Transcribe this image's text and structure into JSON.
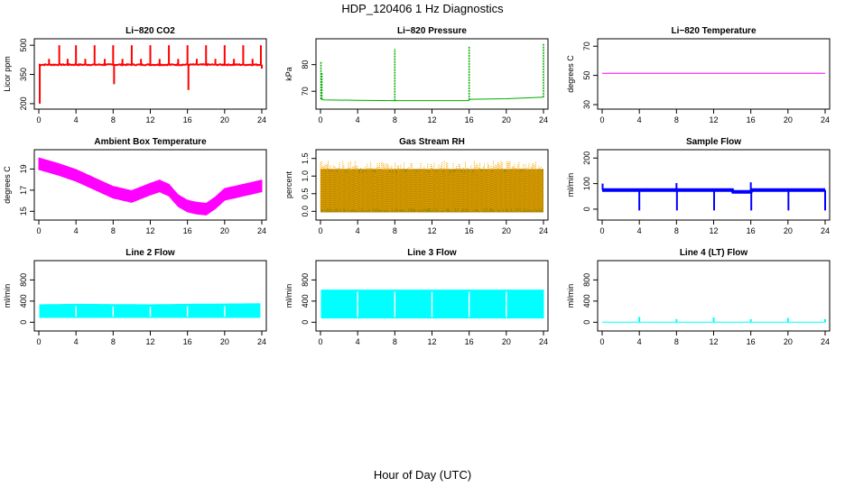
{
  "title": "HDP_120406  1 Hz Diagnostics",
  "xlabel": "Hour of Day (UTC)",
  "chart_data": [
    {
      "type": "line",
      "title": "Li−820 CO2",
      "xlabel": "",
      "ylabel": "Licor ppm",
      "color": "#ff0000",
      "xlim": [
        0,
        24
      ],
      "ylim": [
        195,
        510
      ],
      "xticks": [
        0,
        4,
        8,
        12,
        16,
        20,
        24
      ],
      "yticks": [
        200,
        350,
        500
      ],
      "baseline": 400,
      "noise": 6,
      "spikes": [
        [
          0.1,
          200
        ],
        [
          1.1,
          430
        ],
        [
          2.2,
          500
        ],
        [
          3.1,
          430
        ],
        [
          4.0,
          500
        ],
        [
          5.0,
          430
        ],
        [
          6.0,
          500
        ],
        [
          7.1,
          430
        ],
        [
          8.0,
          500
        ],
        [
          8.1,
          300
        ],
        [
          9.0,
          430
        ],
        [
          10.0,
          500
        ],
        [
          11.0,
          430
        ],
        [
          12.0,
          500
        ],
        [
          13.0,
          430
        ],
        [
          14.0,
          500
        ],
        [
          15.0,
          430
        ],
        [
          16.0,
          500
        ],
        [
          16.1,
          270
        ],
        [
          17.0,
          430
        ],
        [
          18.0,
          500
        ],
        [
          19.0,
          430
        ],
        [
          20.0,
          500
        ],
        [
          21.0,
          430
        ],
        [
          22.0,
          500
        ],
        [
          23.0,
          430
        ],
        [
          23.9,
          500
        ],
        [
          24.0,
          380
        ]
      ]
    },
    {
      "type": "line",
      "title": "Li−820 Pressure",
      "xlabel": "",
      "ylabel": "kPa",
      "color": "#00aa00",
      "xlim": [
        0,
        24
      ],
      "ylim": [
        65,
        88
      ],
      "xticks": [
        0,
        4,
        8,
        12,
        16,
        20,
        24
      ],
      "yticks": [
        70,
        80
      ],
      "x": [
        0,
        0.3,
        4,
        8,
        12,
        15.9,
        16.1,
        20,
        24
      ],
      "y": [
        67.2,
        66.8,
        66.6,
        66.5,
        66.5,
        66.5,
        67.0,
        67.2,
        67.8
      ],
      "spikes": [
        [
          0.05,
          81
        ],
        [
          0.15,
          77
        ],
        [
          8.0,
          86
        ],
        [
          16.0,
          87
        ],
        [
          24.0,
          88
        ]
      ]
    },
    {
      "type": "line",
      "title": "Li−820 Temperature",
      "xlabel": "",
      "ylabel": "degrees C",
      "color": "#ff00ff",
      "xlim": [
        0,
        24
      ],
      "ylim": [
        30,
        72
      ],
      "xticks": [
        0,
        4,
        8,
        12,
        16,
        20,
        24
      ],
      "yticks": [
        30,
        50,
        70
      ],
      "x": [
        0,
        24
      ],
      "y": [
        51.5,
        51.5
      ]
    },
    {
      "type": "line",
      "title": "Ambient Box Temperature",
      "xlabel": "",
      "ylabel": "degrees C",
      "color": "#ff00ff",
      "xlim": [
        0,
        24
      ],
      "ylim": [
        14.6,
        20.4
      ],
      "xticks": [
        0,
        4,
        8,
        12,
        16,
        20,
        24
      ],
      "yticks": [
        15,
        17,
        19
      ],
      "band": 0.55,
      "x": [
        0,
        2,
        4,
        6,
        8,
        10,
        12,
        13,
        14,
        15,
        16,
        17,
        18,
        19,
        20,
        22,
        24
      ],
      "y": [
        19.5,
        19.0,
        18.4,
        17.6,
        16.8,
        16.4,
        17.1,
        17.4,
        17.0,
        16.0,
        15.5,
        15.3,
        15.2,
        15.8,
        16.6,
        17.0,
        17.4
      ]
    },
    {
      "type": "scatter",
      "title": "Gas Stream RH",
      "xlabel": "",
      "ylabel": "percent",
      "color": "#ffa500",
      "color2": "#aa8800",
      "xlim": [
        0,
        24
      ],
      "ylim": [
        -0.12,
        1.62
      ],
      "xticks": [
        0,
        4,
        8,
        12,
        16,
        20,
        24
      ],
      "yticks": [
        0.0,
        0.5,
        1.0,
        1.5
      ],
      "ytick_labels": [
        "0.0",
        "0.5",
        "1.0",
        "1.5"
      ],
      "low": -0.03,
      "high": 1.2,
      "peak": 1.48
    },
    {
      "type": "line",
      "title": "Sample Flow",
      "xlabel": "",
      "ylabel": "ml/min",
      "color": "#0000ff",
      "xlim": [
        0,
        24
      ],
      "ylim": [
        -25,
        215
      ],
      "xticks": [
        0,
        4,
        8,
        12,
        16,
        20,
        24
      ],
      "yticks": [
        0,
        100,
        200
      ],
      "x": [
        0,
        14,
        14.1,
        16,
        16.1,
        24
      ],
      "y": [
        75,
        75,
        68,
        68,
        75,
        75
      ],
      "spikes": [
        [
          0.05,
          100
        ],
        [
          4.0,
          -5
        ],
        [
          8.0,
          102
        ],
        [
          8.05,
          -5
        ],
        [
          12.0,
          80
        ],
        [
          12.05,
          -5
        ],
        [
          16.0,
          105
        ],
        [
          16.05,
          -5
        ],
        [
          20.0,
          80
        ],
        [
          20.05,
          -5
        ],
        [
          24.0,
          -5
        ]
      ]
    },
    {
      "type": "area",
      "title": "Line 2 Flow",
      "xlabel": "",
      "ylabel": "ml/min",
      "color": "#00ffff",
      "xlim": [
        0,
        24
      ],
      "ylim": [
        -80,
        1080
      ],
      "xticks": [
        0,
        4,
        8,
        12,
        16,
        20,
        24
      ],
      "yticks": [
        0,
        400,
        800
      ],
      "x": [
        0.1,
        4,
        8,
        12,
        16,
        20,
        24
      ],
      "low": [
        90,
        90,
        90,
        90,
        90,
        90,
        90
      ],
      "high": [
        330,
        340,
        335,
        330,
        340,
        345,
        350
      ],
      "gaps": [
        4,
        8,
        12,
        16,
        20
      ],
      "end": 23.8
    },
    {
      "type": "area",
      "title": "Line 3 Flow",
      "xlabel": "",
      "ylabel": "ml/min",
      "color": "#00ffff",
      "xlim": [
        0,
        24
      ],
      "ylim": [
        -80,
        1080
      ],
      "xticks": [
        0,
        4,
        8,
        12,
        16,
        20,
        24
      ],
      "yticks": [
        0,
        400,
        800
      ],
      "x": [
        0.1,
        24
      ],
      "low": [
        80,
        80
      ],
      "high": [
        610,
        610
      ],
      "gaps": [
        4,
        8,
        12,
        16,
        20
      ],
      "end": 24.0
    },
    {
      "type": "line",
      "title": "Line 4 (LT) Flow",
      "xlabel": "",
      "ylabel": "ml/min",
      "color": "#00ffff",
      "xlim": [
        0,
        24
      ],
      "ylim": [
        -80,
        1080
      ],
      "xticks": [
        0,
        4,
        8,
        12,
        16,
        20,
        24
      ],
      "yticks": [
        0,
        400,
        800
      ],
      "baseline": 0,
      "spikes": [
        [
          4.0,
          100
        ],
        [
          8.0,
          60
        ],
        [
          12.0,
          90
        ],
        [
          16.0,
          60
        ],
        [
          20.0,
          80
        ],
        [
          24.0,
          60
        ]
      ]
    }
  ]
}
